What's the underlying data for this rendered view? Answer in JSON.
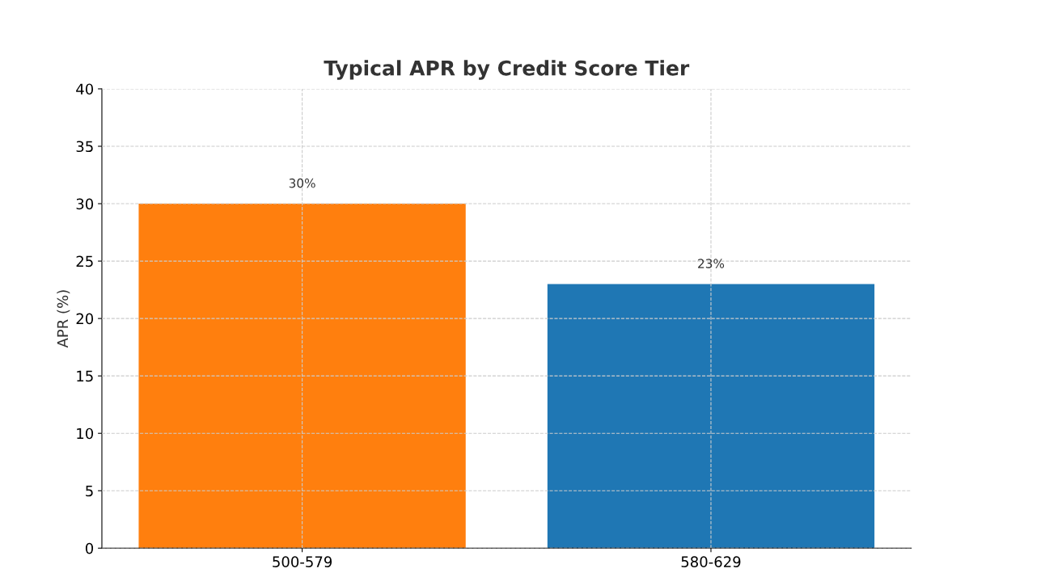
{
  "chart_data": {
    "type": "bar",
    "title": "Typical APR by Credit Score Tier",
    "ylabel": "APR (%)",
    "categories": [
      "500-579",
      "580-629"
    ],
    "values": [
      30,
      23
    ],
    "colors": [
      "#ff7f0e",
      "#1f77b4"
    ],
    "value_labels": [
      "30%",
      "23%"
    ],
    "ylim": [
      0,
      40
    ],
    "yticks": [
      0,
      5,
      10,
      15,
      20,
      25,
      30,
      35,
      40
    ],
    "grid": true,
    "line_style": "dashed"
  }
}
